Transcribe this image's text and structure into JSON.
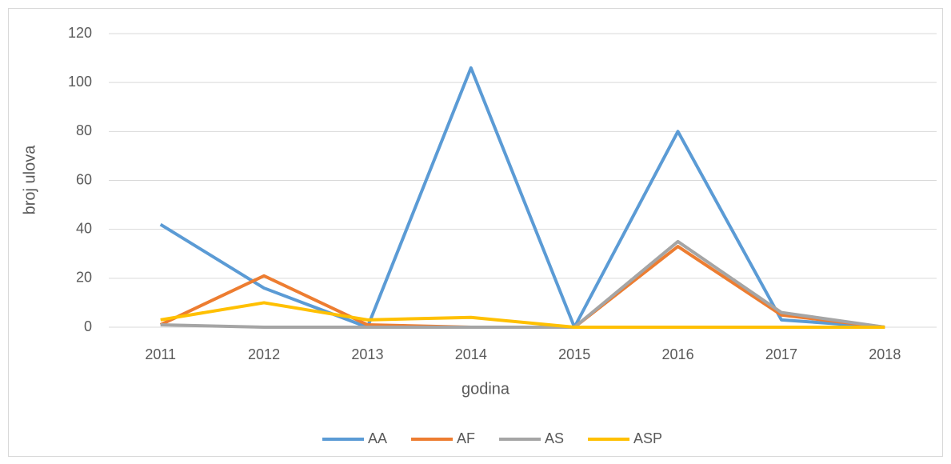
{
  "chart_data": {
    "type": "line",
    "categories": [
      "2011",
      "2012",
      "2013",
      "2014",
      "2015",
      "2016",
      "2017",
      "2018"
    ],
    "series": [
      {
        "name": "AA",
        "color": "#5b9bd5",
        "values": [
          42,
          16,
          0,
          106,
          0,
          80,
          3,
          0
        ]
      },
      {
        "name": "AF",
        "color": "#ed7d31",
        "values": [
          1,
          21,
          1,
          0,
          0,
          33,
          5,
          0
        ]
      },
      {
        "name": "AS",
        "color": "#a5a5a5",
        "values": [
          1,
          0,
          0,
          0,
          0,
          35,
          6,
          0
        ]
      },
      {
        "name": "ASP",
        "color": "#ffc000",
        "values": [
          3,
          10,
          3,
          4,
          0,
          0,
          0,
          0
        ]
      }
    ],
    "ylim": [
      0,
      120
    ],
    "yticks": [
      0,
      20,
      40,
      60,
      80,
      100,
      120
    ],
    "grid": true,
    "xlabel": "godina",
    "ylabel": "broj ulova",
    "legend": "bottom"
  }
}
